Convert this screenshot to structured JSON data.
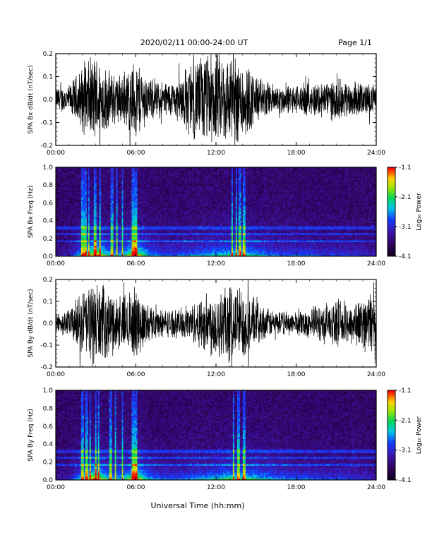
{
  "header": {
    "title": "2020/02/11  00:00-24:00 UT",
    "page": "Page 1/1"
  },
  "chart_data": [
    {
      "type": "line",
      "ylabel": "SPA Bx dB/dt (nT/sec)",
      "ylim": [
        -0.2,
        0.2
      ],
      "yticks": [
        -0.2,
        -0.1,
        0.0,
        0.1,
        0.2
      ],
      "ytick_labels": [
        "-0.2",
        "-0.1",
        "0.0",
        "0.1",
        "0.2"
      ],
      "xlim": [
        0,
        24
      ],
      "xticks": [
        0,
        6,
        12,
        18,
        24
      ],
      "xtick_labels": [
        "00:00",
        "06:00",
        "12:00",
        "18:00",
        "24:00"
      ],
      "envelope": {
        "x": [
          0,
          1,
          2,
          3,
          4,
          5,
          6,
          7,
          8,
          9,
          10,
          11,
          12,
          13,
          14,
          15,
          16,
          17,
          18,
          19,
          20,
          21,
          22,
          23,
          24
        ],
        "amplitude": [
          0.06,
          0.07,
          0.16,
          0.22,
          0.14,
          0.12,
          0.2,
          0.1,
          0.09,
          0.09,
          0.18,
          0.22,
          0.23,
          0.22,
          0.21,
          0.12,
          0.08,
          0.07,
          0.07,
          0.08,
          0.09,
          0.1,
          0.09,
          0.08,
          0.07
        ]
      }
    },
    {
      "type": "heatmap",
      "ylabel": "SPA Bx Freq (Hz)",
      "ylim": [
        0.0,
        1.0
      ],
      "yticks": [
        0.0,
        0.2,
        0.4,
        0.6,
        0.8,
        1.0
      ],
      "ytick_labels": [
        "0.0",
        "0.2",
        "0.4",
        "0.6",
        "0.8",
        "1.0"
      ],
      "xlim": [
        0,
        24
      ],
      "xticks": [
        0,
        6,
        12,
        18,
        24
      ],
      "xtick_labels": [
        "00:00",
        "06:00",
        "12:00",
        "18:00",
        "24:00"
      ],
      "colorbar": {
        "label": "Log₁₀ Power",
        "range": [
          -4.1,
          -1.1
        ],
        "ticks": [
          "-1.1",
          "-2.1",
          "-3.1",
          "-4.1"
        ]
      },
      "power": {
        "x": [
          0,
          1,
          2,
          3,
          4,
          5,
          6,
          7,
          8,
          9,
          10,
          11,
          12,
          13,
          14,
          15,
          16,
          17,
          18,
          19,
          20,
          21,
          22,
          23,
          24
        ],
        "activity": [
          0.1,
          0.15,
          0.5,
          0.85,
          0.45,
          0.45,
          0.8,
          0.4,
          0.3,
          0.3,
          0.35,
          0.4,
          0.45,
          0.5,
          0.55,
          0.45,
          0.35,
          0.3,
          0.3,
          0.3,
          0.25,
          0.25,
          0.25,
          0.2,
          0.15
        ]
      },
      "bright_columns": [
        2.0,
        2.2,
        2.5,
        2.9,
        3.0,
        3.3,
        4.2,
        4.6,
        5.0,
        5.8,
        6.0,
        13.2,
        13.5,
        13.8,
        14.1
      ],
      "band_lines_hz": [
        0.17,
        0.25,
        0.32
      ]
    },
    {
      "type": "line",
      "ylabel": "SPA By dB/dt (nT/sec)",
      "ylim": [
        -0.2,
        0.2
      ],
      "yticks": [
        -0.2,
        -0.1,
        0.0,
        0.1,
        0.2
      ],
      "ytick_labels": [
        "-0.2",
        "-0.1",
        "0.0",
        "0.1",
        "0.2"
      ],
      "xlim": [
        0,
        24
      ],
      "xticks": [
        0,
        6,
        12,
        18,
        24
      ],
      "xtick_labels": [
        "00:00",
        "06:00",
        "12:00",
        "18:00",
        "24:00"
      ],
      "envelope": {
        "x": [
          0,
          1,
          2,
          3,
          4,
          5,
          6,
          7,
          8,
          9,
          10,
          11,
          12,
          13,
          14,
          15,
          16,
          17,
          18,
          19,
          20,
          21,
          22,
          23,
          24
        ],
        "amplitude": [
          0.05,
          0.07,
          0.17,
          0.22,
          0.16,
          0.14,
          0.18,
          0.09,
          0.07,
          0.07,
          0.09,
          0.14,
          0.18,
          0.2,
          0.19,
          0.11,
          0.07,
          0.06,
          0.06,
          0.08,
          0.1,
          0.11,
          0.11,
          0.13,
          0.18
        ]
      }
    },
    {
      "type": "heatmap",
      "ylabel": "SPA By Freq (Hz)",
      "ylim": [
        0.0,
        1.0
      ],
      "yticks": [
        0.0,
        0.2,
        0.4,
        0.6,
        0.8,
        1.0
      ],
      "ytick_labels": [
        "0.0",
        "0.2",
        "0.4",
        "0.6",
        "0.8",
        "1.0"
      ],
      "xlim": [
        0,
        24
      ],
      "xticks": [
        0,
        6,
        12,
        18,
        24
      ],
      "xtick_labels": [
        "00:00",
        "06:00",
        "12:00",
        "18:00",
        "24:00"
      ],
      "colorbar": {
        "label": "Log₁₀ Power",
        "range": [
          -4.1,
          -1.1
        ],
        "ticks": [
          "-1.1",
          "-2.1",
          "-3.1",
          "-4.1"
        ]
      },
      "power": {
        "x": [
          0,
          1,
          2,
          3,
          4,
          5,
          6,
          7,
          8,
          9,
          10,
          11,
          12,
          13,
          14,
          15,
          16,
          17,
          18,
          19,
          20,
          21,
          22,
          23,
          24
        ],
        "activity": [
          0.1,
          0.15,
          0.5,
          0.85,
          0.45,
          0.45,
          0.8,
          0.4,
          0.3,
          0.3,
          0.35,
          0.4,
          0.45,
          0.55,
          0.55,
          0.5,
          0.4,
          0.35,
          0.3,
          0.3,
          0.25,
          0.25,
          0.25,
          0.2,
          0.15
        ]
      },
      "bright_columns": [
        2.0,
        2.3,
        2.6,
        3.0,
        3.2,
        4.1,
        4.5,
        5.0,
        5.8,
        6.0,
        13.3,
        13.7,
        14.1
      ],
      "band_lines_hz": [
        0.17,
        0.25,
        0.32
      ]
    }
  ],
  "footer": {
    "xlabel": "Universal Time (hh:mm)"
  }
}
